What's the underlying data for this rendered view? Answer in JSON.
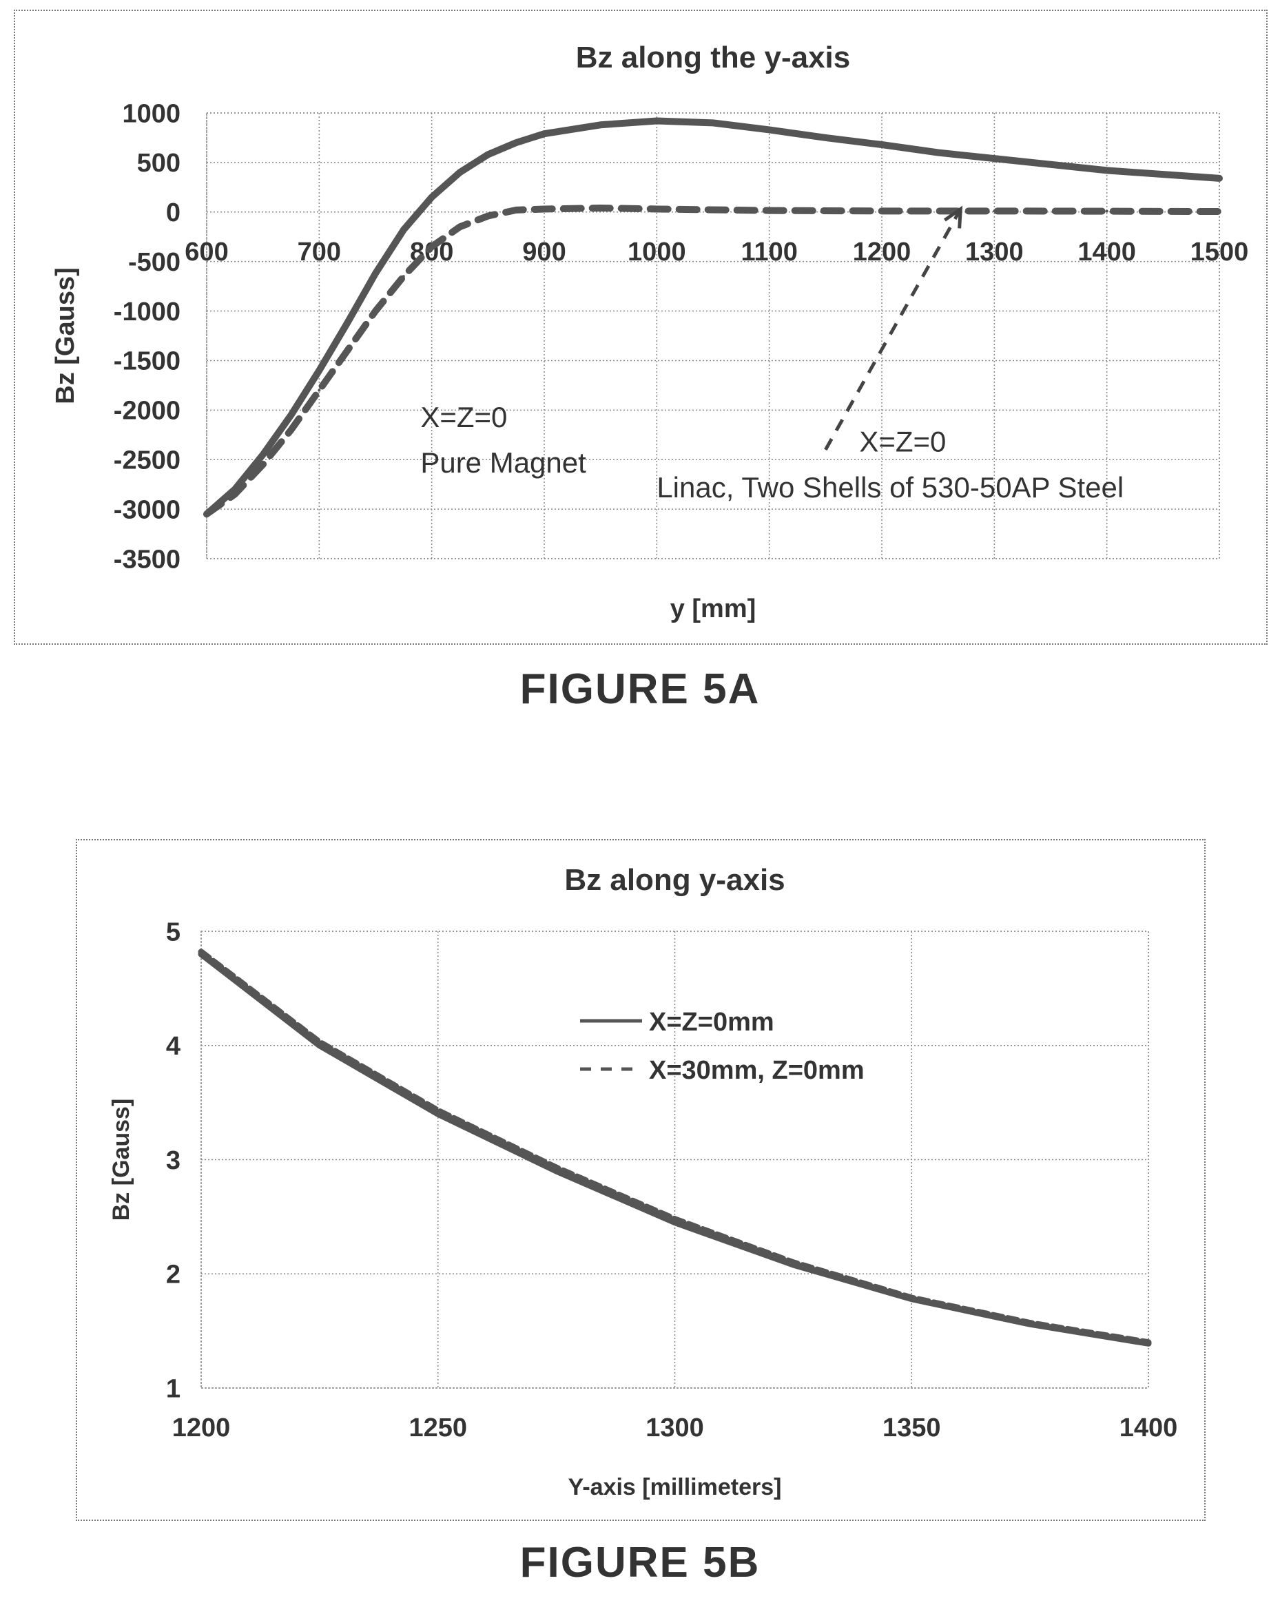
{
  "figures": {
    "a_caption": "FIGURE 5A",
    "b_caption": "FIGURE 5B"
  },
  "chart_data": [
    {
      "type": "line",
      "title": "Bz along the y-axis",
      "xlabel": "y [mm]",
      "ylabel": "Bz [Gauss]",
      "xlim": [
        600,
        1500
      ],
      "ylim": [
        -3500,
        1000
      ],
      "x_ticks": [
        600,
        700,
        800,
        900,
        1000,
        1100,
        1200,
        1300,
        1400,
        1500
      ],
      "y_ticks": [
        1000,
        500,
        0,
        -500,
        -1000,
        -1500,
        -2000,
        -2500,
        -3000,
        -3500
      ],
      "grid": true,
      "series": [
        {
          "style": "solid",
          "x": [
            600,
            625,
            650,
            675,
            700,
            725,
            750,
            775,
            800,
            825,
            850,
            875,
            900,
            950,
            1000,
            1050,
            1100,
            1150,
            1200,
            1250,
            1300,
            1350,
            1400,
            1450,
            1500
          ],
          "y": [
            -3050,
            -2800,
            -2450,
            -2050,
            -1600,
            -1120,
            -620,
            -180,
            150,
            400,
            580,
            700,
            790,
            880,
            920,
            900,
            830,
            750,
            680,
            600,
            540,
            480,
            420,
            380,
            340
          ]
        },
        {
          "style": "dashed",
          "x": [
            600,
            625,
            650,
            675,
            700,
            725,
            750,
            775,
            800,
            825,
            850,
            875,
            900,
            950,
            1000,
            1100,
            1200,
            1300,
            1400,
            1500
          ],
          "y": [
            -3050,
            -2850,
            -2550,
            -2200,
            -1800,
            -1400,
            -1000,
            -650,
            -350,
            -150,
            -40,
            20,
            30,
            40,
            30,
            15,
            10,
            10,
            8,
            5
          ]
        }
      ],
      "annotations": [
        {
          "text": "X=Z=0",
          "x": 790,
          "y": -2170
        },
        {
          "text": "Pure Magnet",
          "x": 790,
          "y": -2630
        },
        {
          "text": "X=Z=0",
          "x": 1180,
          "y": -2420
        },
        {
          "text": "Linac, Two Shells of 530-50AP Steel",
          "x": 1000,
          "y": -2880
        }
      ],
      "arrow": {
        "from": [
          1150,
          -2400
        ],
        "to": [
          1270,
          30
        ]
      }
    },
    {
      "type": "line",
      "title": "Bz along y-axis",
      "xlabel": "Y-axis [millimeters]",
      "ylabel": "Bz [Gauss]",
      "xlim": [
        1200,
        1400
      ],
      "ylim": [
        1,
        5
      ],
      "x_ticks": [
        1200,
        1250,
        1300,
        1350,
        1400
      ],
      "y_ticks": [
        5,
        4,
        3,
        2,
        1
      ],
      "grid": true,
      "legend_position": "upper-middle",
      "series": [
        {
          "name": "X=Z=0mm",
          "style": "solid",
          "x": [
            1200,
            1225,
            1250,
            1275,
            1300,
            1325,
            1350,
            1375,
            1400
          ],
          "y": [
            4.8,
            4.0,
            3.4,
            2.9,
            2.45,
            2.08,
            1.78,
            1.56,
            1.39
          ]
        },
        {
          "name": "X=30mm, Z=0mm",
          "style": "dashed",
          "x": [
            1200,
            1225,
            1250,
            1275,
            1300,
            1325,
            1350,
            1375,
            1400
          ],
          "y": [
            4.82,
            4.03,
            3.43,
            2.93,
            2.48,
            2.1,
            1.79,
            1.57,
            1.4
          ]
        }
      ]
    }
  ]
}
